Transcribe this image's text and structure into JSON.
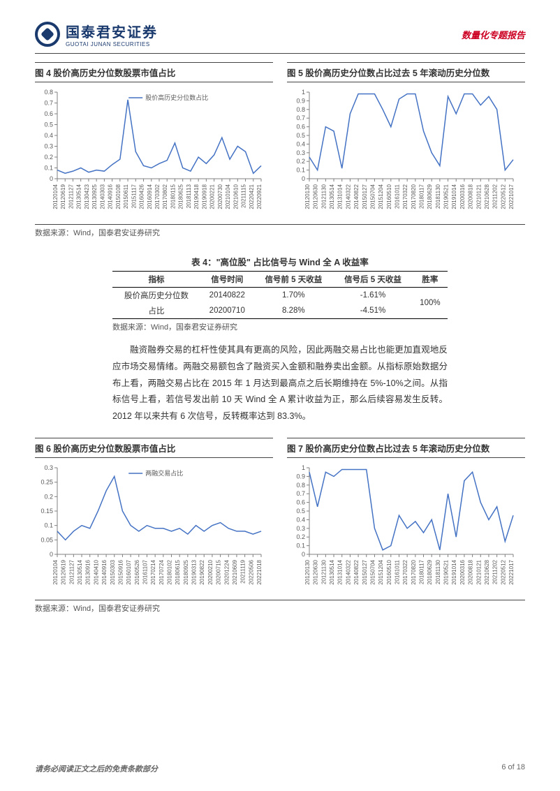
{
  "header": {
    "logo_cn": "国泰君安证券",
    "logo_en": "GUOTAI JUNAN SECURITIES",
    "right": "数量化专题报告"
  },
  "source": "数据来源：Wind，国泰君安证券研究",
  "table_source": "数据来源：Wind，国泰君安证券研究",
  "footer": {
    "left": "请务必阅读正文之后的免责条款部分",
    "right": "6 of 18"
  },
  "charts": {
    "c4": {
      "title": "图 4 股价高历史分位数股票市值占比",
      "legend": "股价高历史分位数占比",
      "line_color": "#4472c4",
      "axis_color": "#808080",
      "text_color": "#595959",
      "ylim": [
        0,
        0.8
      ],
      "yticks": [
        0,
        0.1,
        0.2,
        0.3,
        0.4,
        0.5,
        0.6,
        0.7,
        0.8
      ],
      "xlabels": [
        "20120104",
        "20120619",
        "20121127",
        "20130514",
        "20130423",
        "20130925",
        "20140303",
        "20140916",
        "20150108",
        "20150611",
        "20151117",
        "20160426",
        "20160914",
        "20170302",
        "20170802",
        "20180115",
        "20180625",
        "20181113",
        "20190418",
        "20190918",
        "20200221",
        "20200730",
        "20210104",
        "20210610",
        "20211115",
        "20220421",
        "20220921"
      ],
      "values": [
        0.08,
        0.05,
        0.07,
        0.1,
        0.06,
        0.08,
        0.07,
        0.13,
        0.18,
        0.73,
        0.25,
        0.12,
        0.1,
        0.14,
        0.17,
        0.33,
        0.1,
        0.07,
        0.2,
        0.14,
        0.22,
        0.38,
        0.18,
        0.3,
        0.25,
        0.05,
        0.12
      ]
    },
    "c5": {
      "title": "图 5 股价高历史分位数占比过去 5 年滚动历史分位数",
      "line_color": "#4472c4",
      "axis_color": "#808080",
      "text_color": "#595959",
      "ylim": [
        0,
        1
      ],
      "yticks": [
        0,
        0.1,
        0.2,
        0.3,
        0.4,
        0.5,
        0.6,
        0.7,
        0.8,
        0.9,
        1
      ],
      "xlabels": [
        "20120130",
        "20120630",
        "20121130",
        "20130514",
        "20131014",
        "20140322",
        "20140822",
        "20150127",
        "20150704",
        "20151204",
        "20160510",
        "20161011",
        "20170322",
        "20170820",
        "20180117",
        "20180629",
        "20181130",
        "20190521",
        "20191014",
        "20200316",
        "20200818",
        "20210121",
        "20210628",
        "20211202",
        "20220512",
        "20221017"
      ],
      "values": [
        0.25,
        0.1,
        0.6,
        0.55,
        0.12,
        0.75,
        0.98,
        0.98,
        0.98,
        0.8,
        0.6,
        0.92,
        0.98,
        0.98,
        0.55,
        0.3,
        0.15,
        0.95,
        0.75,
        0.98,
        0.98,
        0.85,
        0.95,
        0.8,
        0.1,
        0.22
      ]
    },
    "c6": {
      "title": "图 6 股价高历史分位数股票市值占比",
      "legend": "两融交易占比",
      "line_color": "#4472c4",
      "axis_color": "#808080",
      "text_color": "#595959",
      "ylim": [
        0,
        0.3
      ],
      "yticks": [
        0,
        0.05,
        0.1,
        0.15,
        0.2,
        0.25,
        0.3
      ],
      "xlabels": [
        "20120104",
        "20120619",
        "20121127",
        "20130514",
        "20130916",
        "20140410",
        "20140916",
        "20150303",
        "20150916",
        "20160107",
        "20160526",
        "20161107",
        "20170214",
        "20170724",
        "20180102",
        "20180615",
        "20180925",
        "20190313",
        "20190822",
        "20200210",
        "20200715",
        "20201224",
        "20210609",
        "20211119",
        "20220506",
        "20221018"
      ],
      "values": [
        0.08,
        0.05,
        0.08,
        0.1,
        0.09,
        0.15,
        0.22,
        0.27,
        0.15,
        0.1,
        0.08,
        0.1,
        0.09,
        0.09,
        0.08,
        0.09,
        0.07,
        0.1,
        0.08,
        0.1,
        0.11,
        0.09,
        0.08,
        0.08,
        0.07,
        0.08
      ]
    },
    "c7": {
      "title": "图 7 股价高历史分位数占比过去 5 年滚动历史分位数",
      "line_color": "#4472c4",
      "axis_color": "#808080",
      "text_color": "#595959",
      "ylim": [
        0,
        1
      ],
      "yticks": [
        0,
        0.1,
        0.2,
        0.3,
        0.4,
        0.5,
        0.6,
        0.7,
        0.8,
        0.9,
        1
      ],
      "xlabels": [
        "20120130",
        "20120630",
        "20121130",
        "20130514",
        "20131014",
        "20140322",
        "20140822",
        "20150127",
        "20150704",
        "20151204",
        "20160510",
        "20161011",
        "20170322",
        "20170820",
        "20180117",
        "20180629",
        "20181130",
        "20190521",
        "20191014",
        "20200316",
        "20200818",
        "20210121",
        "20210628",
        "20211202",
        "20220512",
        "20221017"
      ],
      "values": [
        0.95,
        0.55,
        0.95,
        0.9,
        0.98,
        0.98,
        0.98,
        0.98,
        0.3,
        0.05,
        0.1,
        0.45,
        0.3,
        0.38,
        0.25,
        0.4,
        0.05,
        0.7,
        0.2,
        0.85,
        0.95,
        0.6,
        0.4,
        0.55,
        0.15,
        0.45
      ]
    }
  },
  "table4": {
    "title": "表 4：\"高位股\" 占比信号与 Wind 全 A 收益率",
    "headers": [
      "指标",
      "信号时间",
      "信号前 5 天收益",
      "信号后 5 天收益",
      "胜率"
    ],
    "rows": [
      [
        "股价高历史分位数",
        "20140822",
        "1.70%",
        "-1.61%"
      ],
      [
        "占比",
        "20200710",
        "8.28%",
        "-4.51%"
      ]
    ],
    "winrate": "100%"
  },
  "body_text": "融资融券交易的杠杆性使其具有更高的风险，因此两融交易占比也能更加直观地反应市场交易情绪。两融交易额包含了融资买入金额和融券卖出金额。从指标原始数据分布上看，两融交易占比在 2015 年 1 月达到最高点之后长期维持在 5%-10%之间。从指标信号上看，若信号发出前 10 天 Wind 全 A 累计收益为正，那么后续容易发生反转。2012 年以来共有 6 次信号，反转概率达到 83.3%。"
}
